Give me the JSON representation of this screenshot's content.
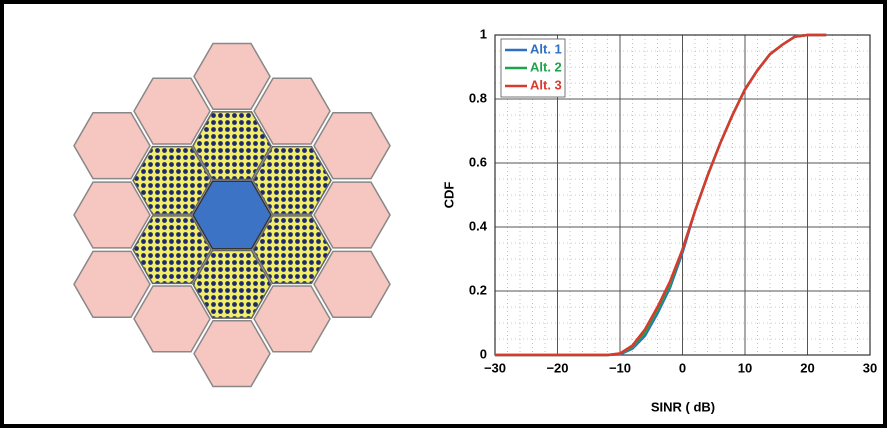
{
  "chart_data": {
    "type": "line",
    "xlabel": "SINR ( dB)",
    "ylabel": "CDF",
    "x": [
      -30,
      -12,
      -10,
      -8,
      -6,
      -4,
      -2,
      0,
      2,
      4,
      6,
      8,
      10,
      12,
      14,
      16,
      18,
      20,
      23
    ],
    "series": [
      {
        "name": "Alt. 1",
        "color": "#2e6fc4",
        "values": [
          0,
          0,
          0.002,
          0.02,
          0.06,
          0.13,
          0.21,
          0.32,
          0.45,
          0.56,
          0.66,
          0.75,
          0.83,
          0.89,
          0.94,
          0.97,
          0.995,
          1,
          1
        ]
      },
      {
        "name": "Alt. 2",
        "color": "#1ea34c",
        "values": [
          0,
          0,
          0.004,
          0.025,
          0.07,
          0.14,
          0.22,
          0.33,
          0.45,
          0.56,
          0.66,
          0.75,
          0.83,
          0.89,
          0.94,
          0.97,
          0.995,
          1,
          1
        ]
      },
      {
        "name": "Alt. 3",
        "color": "#d93a2e",
        "values": [
          0,
          0,
          0.005,
          0.03,
          0.08,
          0.15,
          0.23,
          0.33,
          0.45,
          0.56,
          0.66,
          0.75,
          0.83,
          0.89,
          0.94,
          0.97,
          0.995,
          1,
          1
        ]
      }
    ],
    "xlim": [
      -30,
      30
    ],
    "xticks": [
      {
        "value": -30,
        "label": "−30"
      },
      {
        "value": -20,
        "label": "−20"
      },
      {
        "value": -10,
        "label": "−10"
      },
      0,
      10,
      20,
      30
    ],
    "ylim": [
      0,
      1
    ],
    "yticks": [
      0,
      0.2,
      0.4,
      0.6,
      0.8,
      1
    ],
    "grid": true,
    "legend": "upper left"
  }
}
